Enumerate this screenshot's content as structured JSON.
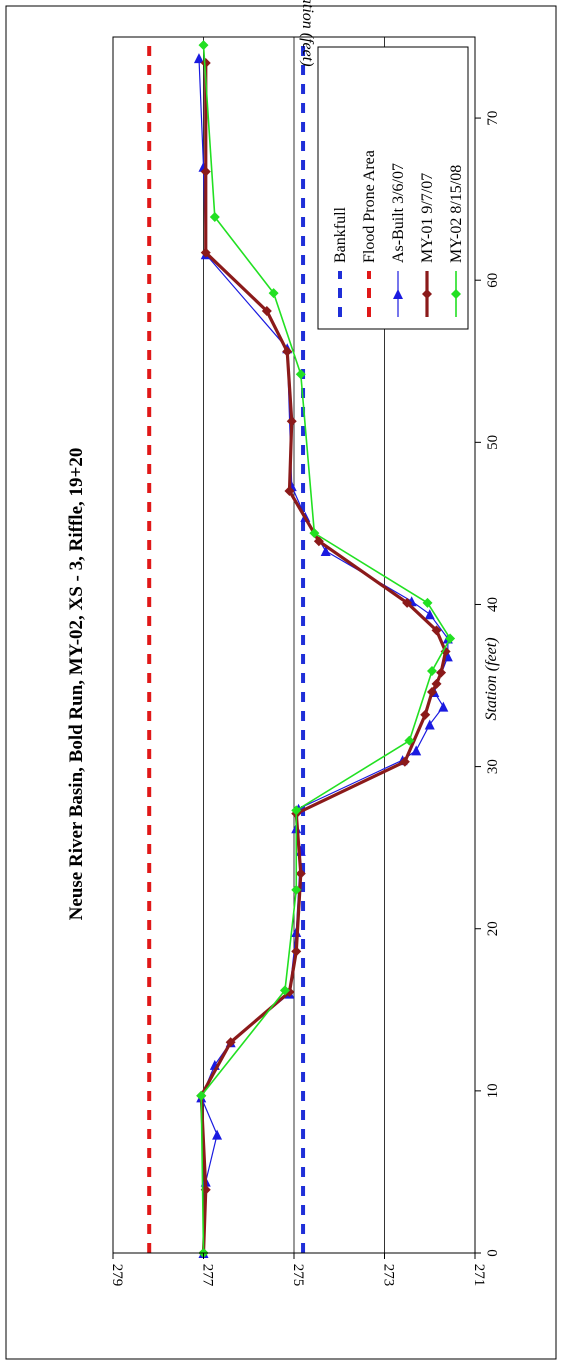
{
  "chart_data": {
    "type": "line",
    "title": "Neuse River Basin, Bold Run, MY-02, XS - 3, Riffle, 19+20",
    "xlabel": "Station (feet)",
    "ylabel": "Elevation (feet)",
    "xlim": [
      0,
      75
    ],
    "ylim": [
      271,
      279
    ],
    "x_ticks": [
      "0",
      "10",
      "20",
      "30",
      "40",
      "50",
      "60",
      "70"
    ],
    "y_ticks": [
      "279",
      "277",
      "275",
      "273",
      "271"
    ],
    "legend_position": "upper-right",
    "reference_lines": [
      {
        "name": "Bankfull",
        "value": 274.8,
        "color": "#1f2fd8"
      },
      {
        "name": "Flood Prone Area",
        "value": 278.2,
        "color": "#e01818"
      }
    ],
    "series": [
      {
        "name": "As-Built 3/6/07",
        "color": "#1a1ae0",
        "marker": "triangle",
        "x": [
          0,
          4.4,
          7.3,
          9.6,
          11.6,
          13,
          16,
          19.8,
          24.8,
          26.2,
          27.4,
          30.4,
          31,
          32.6,
          33.7,
          34.6,
          36.8,
          37.9,
          39.4,
          40.2,
          43.3,
          45.4,
          47.3,
          55.8,
          61.6,
          67,
          73.7
        ],
        "y": [
          277,
          276.95,
          276.7,
          277.05,
          276.75,
          276.4,
          275.1,
          274.95,
          274.85,
          274.95,
          274.9,
          272.6,
          272.3,
          272,
          271.7,
          271.9,
          271.6,
          271.6,
          272,
          272.4,
          274.3,
          274.75,
          275.05,
          275.15,
          276.95,
          277,
          277.1
        ]
      },
      {
        "name": "MY-01 9/7/07",
        "color": "#8b1a1a",
        "marker": "diamond",
        "x": [
          0,
          3.9,
          9.7,
          13,
          16.1,
          18.6,
          23.4,
          27.1,
          30.3,
          33.2,
          34.6,
          35.1,
          35.8,
          37.1,
          38.4,
          40.1,
          43.9,
          47,
          51.3,
          55.6,
          58.1,
          61.7,
          66.7,
          73.4
        ],
        "y": [
          277,
          276.95,
          277.05,
          276.4,
          275.1,
          274.95,
          274.85,
          274.95,
          272.55,
          272.1,
          271.95,
          271.85,
          271.75,
          271.65,
          271.85,
          272.5,
          274.45,
          275.1,
          275.05,
          275.15,
          275.6,
          276.95,
          276.95,
          276.95
        ]
      },
      {
        "name": "MY-02 8/15/08",
        "color": "#22e022",
        "marker": "diamond",
        "x": [
          0,
          9.7,
          16.2,
          22.4,
          27.3,
          31.6,
          35.9,
          37.9,
          40.1,
          44.4,
          54.2,
          59.2,
          63.9,
          74.5
        ],
        "y": [
          277,
          277.05,
          275.2,
          274.95,
          274.95,
          272.45,
          271.95,
          271.55,
          272.05,
          274.55,
          274.85,
          275.45,
          276.75,
          277
        ]
      }
    ]
  }
}
